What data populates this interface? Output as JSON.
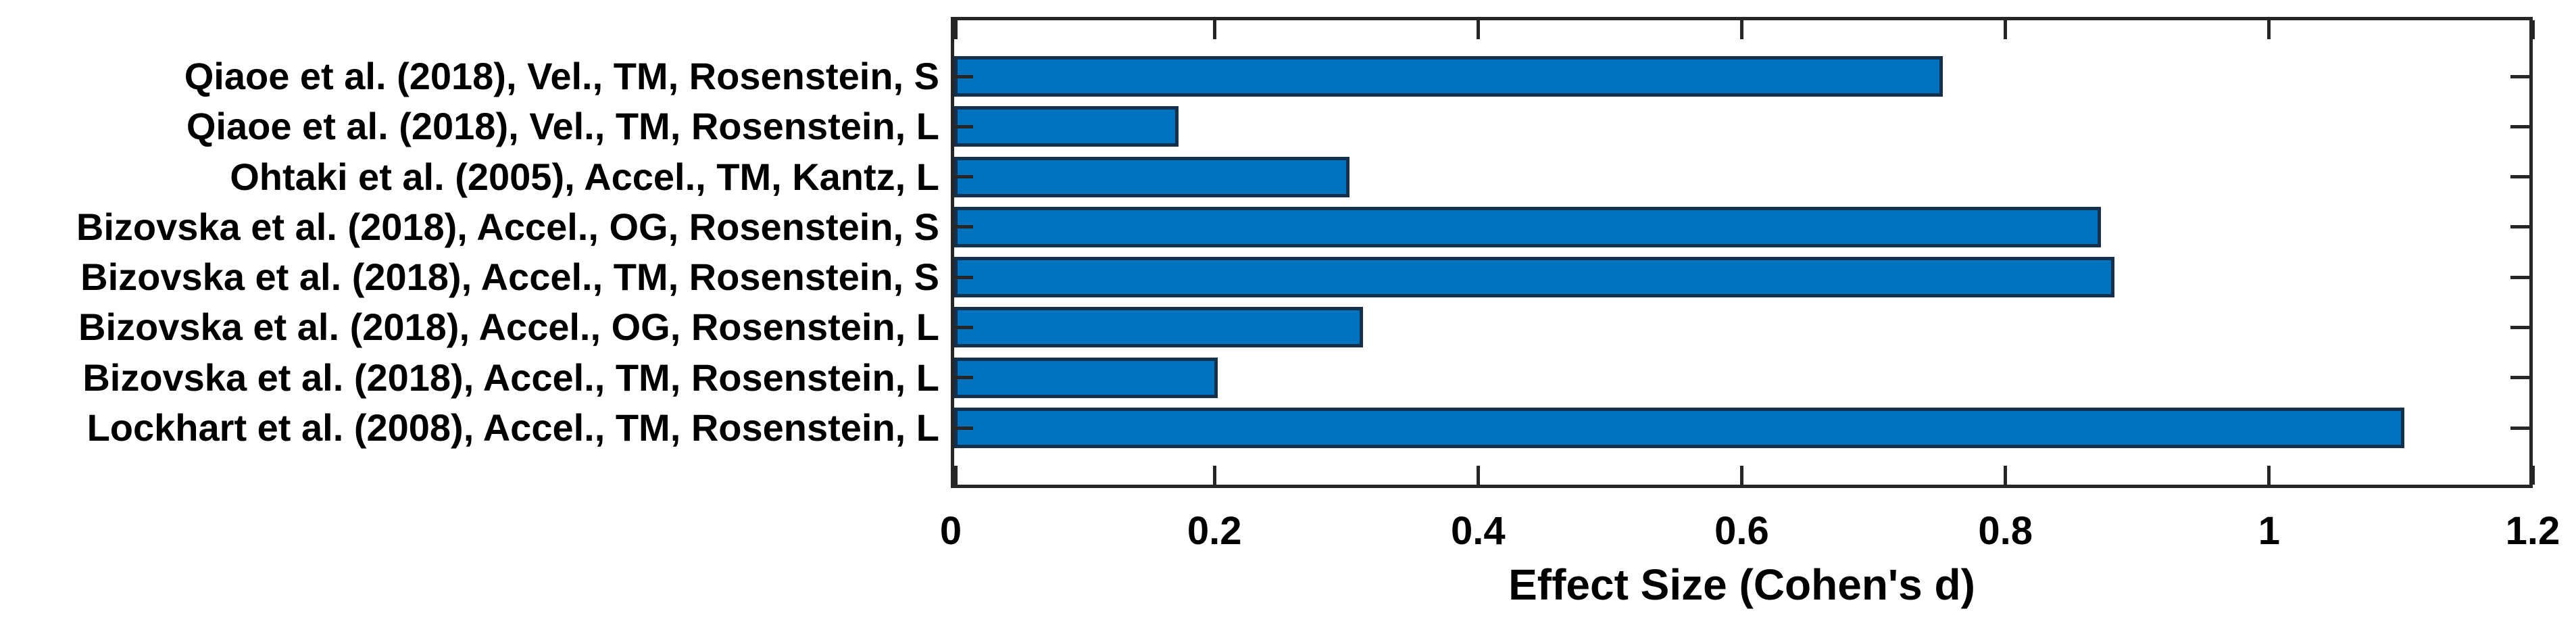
{
  "chart_data": {
    "type": "bar",
    "orientation": "horizontal",
    "title": "",
    "xlabel": "Effect Size (Cohen's d)",
    "ylabel": "",
    "categories": [
      "Qiaoe et al. (2018), Vel., TM, Rosenstein, S",
      "Qiaoe et al. (2018), Vel., TM, Rosenstein, L",
      "Ohtaki et al. (2005), Accel., TM, Kantz, L",
      "Bizovska et al. (2018), Accel., OG, Rosenstein, S",
      "Bizovska et al. (2018), Accel., TM, Rosenstein, S",
      "Bizovska et al. (2018), Accel., OG, Rosenstein, L",
      "Bizovska et al. (2018), Accel., TM, Rosenstein, L",
      "Lockhart et al. (2008), Accel., TM, Rosenstein, L"
    ],
    "values": [
      0.75,
      0.17,
      0.3,
      0.87,
      0.88,
      0.31,
      0.2,
      1.1
    ],
    "xlim": [
      0,
      1.2
    ],
    "xticks": [
      {
        "value": 0,
        "label": "0"
      },
      {
        "value": 0.2,
        "label": "0.2"
      },
      {
        "value": 0.4,
        "label": "0.4"
      },
      {
        "value": 0.6,
        "label": "0.6"
      },
      {
        "value": 0.8,
        "label": "0.8"
      },
      {
        "value": 1,
        "label": "1"
      },
      {
        "value": 1.2,
        "label": "1.2"
      }
    ],
    "grid": false,
    "legend": "none",
    "colors": {
      "bar_fill": "#0072BD",
      "bar_edge": "#14304a",
      "axis": "#262626",
      "text": "#000000",
      "background": "#ffffff"
    }
  }
}
